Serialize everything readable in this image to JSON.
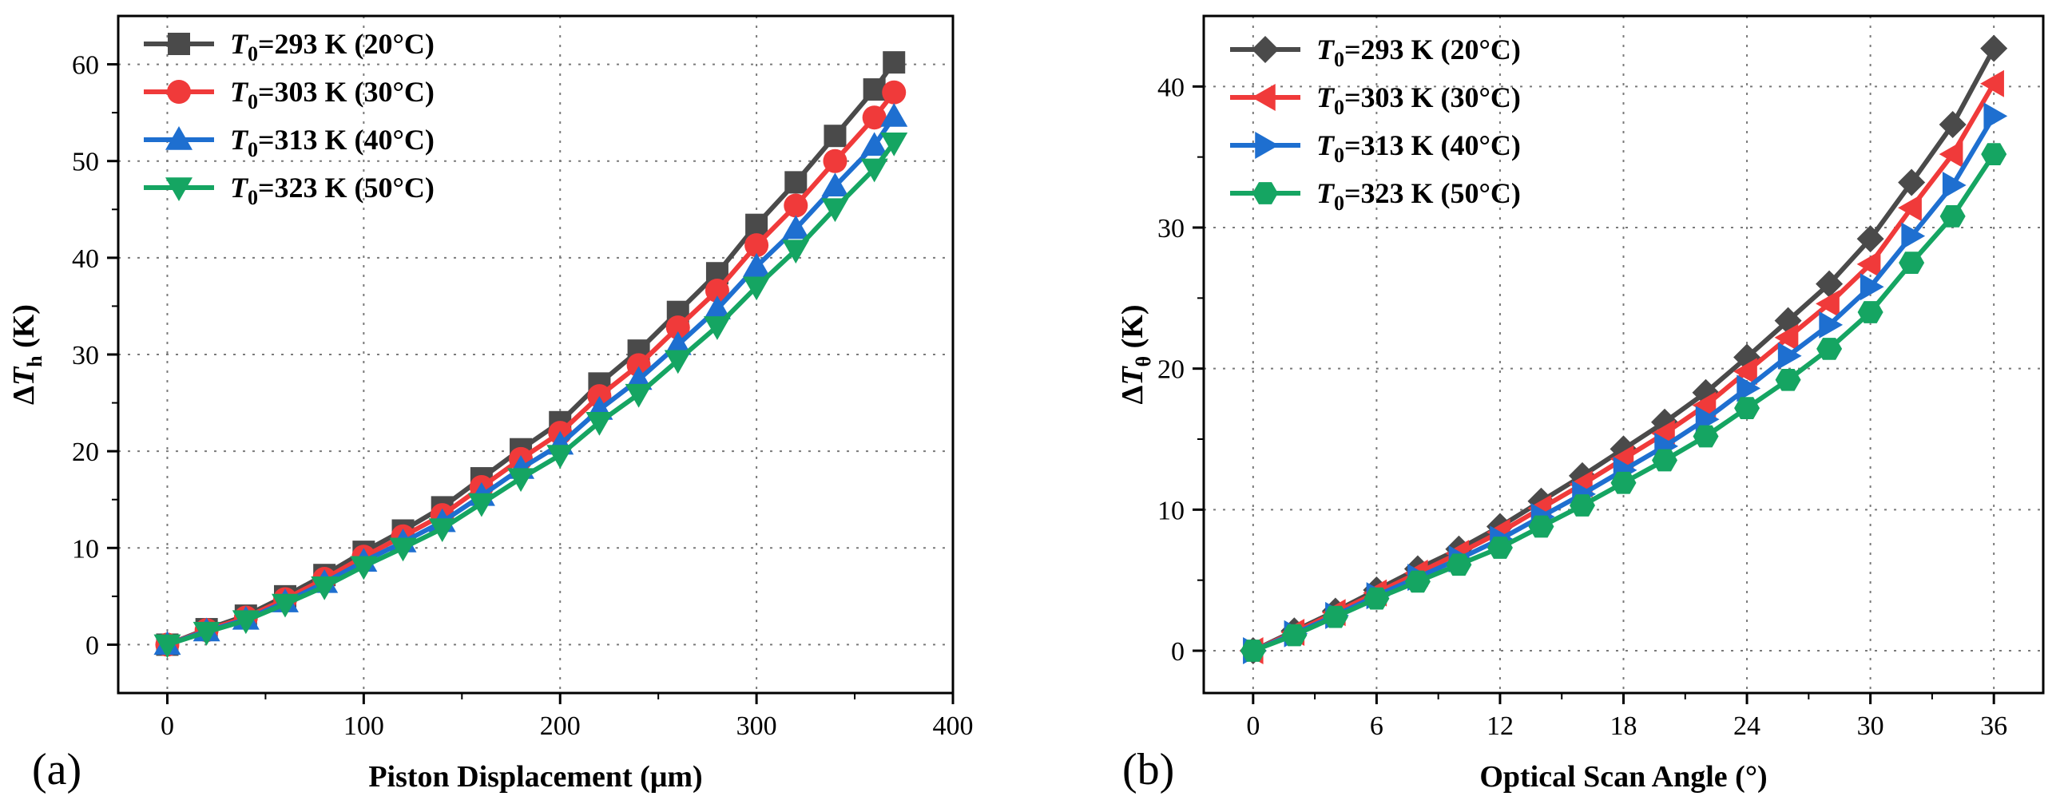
{
  "chart_data": [
    {
      "type": "line",
      "panel_label": "(a)",
      "xlabel": "Piston Displacement (μm)",
      "ylabel_prefix": "Δ",
      "ylabel_var": "T",
      "ylabel_sub": "h",
      "ylabel_unit": " (K)",
      "xlim": [
        -25,
        400
      ],
      "ylim": [
        -5,
        65
      ],
      "xticks": [
        0,
        100,
        200,
        300,
        400
      ],
      "yticks": [
        0,
        10,
        20,
        30,
        40,
        50,
        60
      ],
      "grid": true,
      "legend": "top-left",
      "x": [
        0,
        20,
        40,
        60,
        80,
        100,
        120,
        140,
        160,
        180,
        200,
        220,
        240,
        260,
        280,
        300,
        320,
        340,
        360,
        370
      ],
      "series": [
        {
          "name": "T0=293 K (20°C)",
          "legend_temp": "=293 K",
          "legend_celsius": "(20°C)",
          "color": "#4a4a4a",
          "marker": "square",
          "values": [
            0,
            1.6,
            3.0,
            5.0,
            7.2,
            9.6,
            11.8,
            14.2,
            17.2,
            20.2,
            23.0,
            27.0,
            30.4,
            34.4,
            38.4,
            43.4,
            47.8,
            52.6,
            57.4,
            60.2
          ]
        },
        {
          "name": "T0=303 K (30°C)",
          "legend_temp": "=303 K",
          "legend_celsius": "(30°C)",
          "color": "#f03a3a",
          "marker": "circle",
          "values": [
            0,
            1.5,
            2.8,
            4.7,
            6.8,
            9.1,
            11.2,
            13.4,
            16.3,
            19.2,
            21.9,
            25.7,
            28.9,
            32.8,
            36.6,
            41.3,
            45.4,
            50.0,
            54.5,
            57.1
          ]
        },
        {
          "name": "T0=313 K (40°C)",
          "legend_temp": "=313 K",
          "legend_celsius": "(40°C)",
          "color": "#1e6fd0",
          "marker": "triangle-up",
          "values": [
            0,
            1.4,
            2.6,
            4.4,
            6.4,
            8.6,
            10.6,
            12.7,
            15.4,
            18.2,
            20.7,
            24.3,
            27.4,
            31.0,
            34.7,
            39.1,
            43.0,
            47.4,
            51.6,
            54.6
          ]
        },
        {
          "name": "T0=323 K (50°C)",
          "legend_temp": "=323 K",
          "legend_celsius": "(50°C)",
          "color": "#15a562",
          "marker": "triangle-down",
          "values": [
            0,
            1.3,
            2.5,
            4.2,
            6.0,
            8.1,
            10.0,
            12.0,
            14.6,
            17.2,
            19.6,
            23.0,
            25.9,
            29.4,
            32.9,
            37.0,
            40.8,
            45.1,
            49.2,
            51.9
          ]
        }
      ]
    },
    {
      "type": "line",
      "panel_label": "(b)",
      "xlabel": "Optical Scan Angle (°)",
      "ylabel_prefix": "Δ",
      "ylabel_var": "T",
      "ylabel_sub": "θ",
      "ylabel_unit": " (K)",
      "xlim": [
        -2.4,
        38.4
      ],
      "ylim": [
        -3,
        45
      ],
      "xticks": [
        0,
        6,
        12,
        18,
        24,
        30,
        36
      ],
      "yticks": [
        0,
        10,
        20,
        30,
        40
      ],
      "grid": true,
      "legend": "top-left",
      "x": [
        0,
        2,
        4,
        6,
        8,
        10,
        12,
        14,
        16,
        18,
        20,
        22,
        24,
        26,
        28,
        30,
        32,
        34,
        36
      ],
      "series": [
        {
          "name": "T0=293 K (20°C)",
          "legend_temp": "=293 K",
          "legend_celsius": "(20°C)",
          "color": "#4a4a4a",
          "marker": "diamond",
          "values": [
            0,
            1.4,
            2.8,
            4.3,
            5.8,
            7.2,
            8.8,
            10.6,
            12.4,
            14.3,
            16.2,
            18.3,
            20.8,
            23.4,
            26.0,
            29.2,
            33.2,
            37.3,
            42.7
          ]
        },
        {
          "name": "T0=303 K (30°C)",
          "legend_temp": "=303 K",
          "legend_celsius": "(30°C)",
          "color": "#f03a3a",
          "marker": "triangle-left",
          "values": [
            0,
            1.3,
            2.7,
            4.1,
            5.5,
            6.9,
            8.4,
            10.1,
            11.8,
            13.6,
            15.4,
            17.4,
            19.8,
            22.2,
            24.6,
            27.4,
            31.4,
            35.2,
            40.2
          ]
        },
        {
          "name": "T0=313 K (40°C)",
          "legend_temp": "=313 K",
          "legend_celsius": "(40°C)",
          "color": "#1e6fd0",
          "marker": "triangle-right",
          "values": [
            0,
            1.2,
            2.5,
            3.9,
            5.2,
            6.5,
            7.9,
            9.5,
            11.1,
            12.8,
            14.5,
            16.4,
            18.6,
            20.9,
            23.1,
            25.8,
            29.4,
            33.0,
            37.9
          ]
        },
        {
          "name": "T0=323 K (50°C)",
          "legend_temp": "=323 K",
          "legend_celsius": "(50°C)",
          "color": "#15a562",
          "marker": "hexagon",
          "values": [
            0,
            1.1,
            2.4,
            3.7,
            4.9,
            6.1,
            7.3,
            8.8,
            10.3,
            11.9,
            13.5,
            15.2,
            17.2,
            19.2,
            21.4,
            24.0,
            27.5,
            30.8,
            35.2
          ]
        }
      ]
    }
  ]
}
